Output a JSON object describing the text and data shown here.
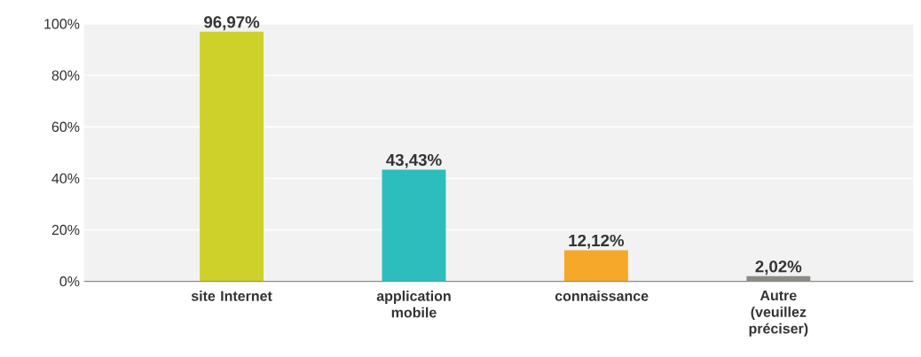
{
  "chart_data": {
    "type": "bar",
    "categories": [
      "site Internet",
      "application mobile",
      "connaissance",
      "Autre (veuillez préciser)"
    ],
    "values": [
      96.97,
      43.43,
      12.12,
      2.02
    ],
    "colors": [
      "#cdd12a",
      "#2ebdbd",
      "#f5a82a",
      "#8a8a86"
    ],
    "value_labels": [
      "96,97%",
      "43,43%",
      "12,12%",
      "2,02%"
    ],
    "ylim": [
      0,
      100
    ],
    "yticks": [
      {
        "value": 0,
        "label": "0%"
      },
      {
        "value": 20,
        "label": "20%"
      },
      {
        "value": 40,
        "label": "40%"
      },
      {
        "value": 60,
        "label": "60%"
      },
      {
        "value": 80,
        "label": "80%"
      },
      {
        "value": 100,
        "label": "100%"
      }
    ],
    "grid": "y"
  }
}
